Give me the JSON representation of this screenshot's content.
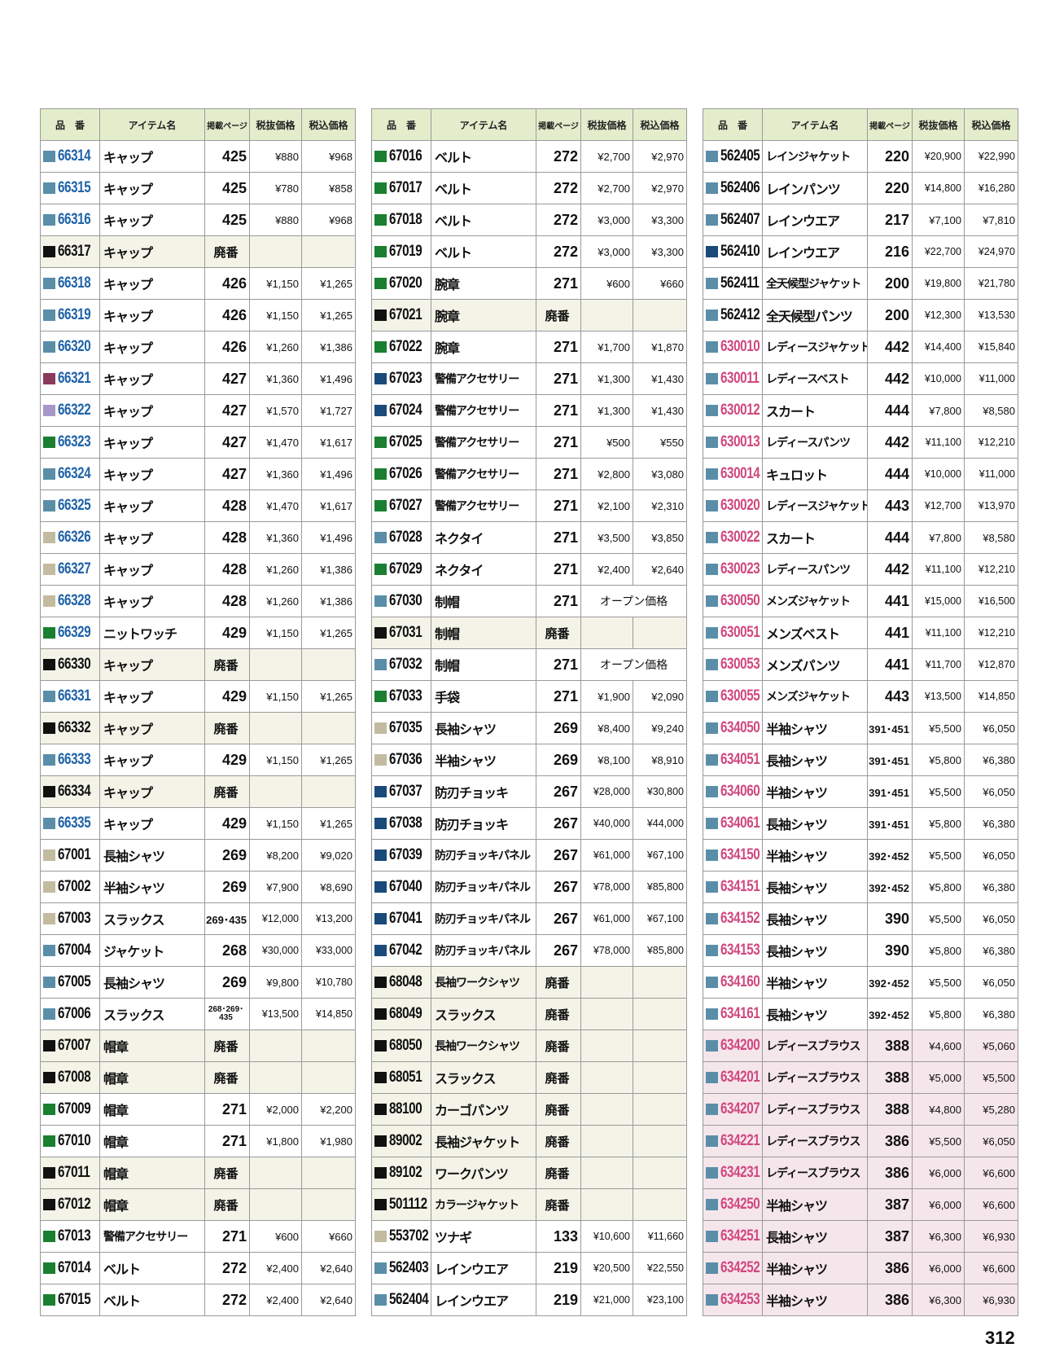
{
  "headers": [
    "品　番",
    "アイテム名",
    "掲載ページ",
    "税抜価格",
    "税込価格"
  ],
  "colors": {
    "s": "#5a8ea8",
    "k": "#111111",
    "m": "#8a3a5a",
    "l": "#a996c8",
    "g": "#1a7f30",
    "t": "#c2bba0",
    "n": "#1a4a7a",
    "blue": "#1f63a8",
    "pink": "#d0487e",
    "black": "#111111"
  },
  "discontinued_label": "廃番",
  "open_price_label": "オープン価格",
  "page_number": "312",
  "tables": [
    [
      [
        "s",
        "66314",
        "キャップ",
        "425",
        "¥880",
        "¥968",
        "blue"
      ],
      [
        "s",
        "66315",
        "キャップ",
        "425",
        "¥780",
        "¥858",
        "blue"
      ],
      [
        "s",
        "66316",
        "キャップ",
        "425",
        "¥880",
        "¥968",
        "blue"
      ],
      [
        "k",
        "66317",
        "キャップ",
        "廃番",
        "",
        "",
        "black"
      ],
      [
        "s",
        "66318",
        "キャップ",
        "426",
        "¥1,150",
        "¥1,265",
        "blue"
      ],
      [
        "s",
        "66319",
        "キャップ",
        "426",
        "¥1,150",
        "¥1,265",
        "blue"
      ],
      [
        "s",
        "66320",
        "キャップ",
        "426",
        "¥1,260",
        "¥1,386",
        "blue"
      ],
      [
        "m",
        "66321",
        "キャップ",
        "427",
        "¥1,360",
        "¥1,496",
        "blue"
      ],
      [
        "l",
        "66322",
        "キャップ",
        "427",
        "¥1,570",
        "¥1,727",
        "blue"
      ],
      [
        "g",
        "66323",
        "キャップ",
        "427",
        "¥1,470",
        "¥1,617",
        "blue"
      ],
      [
        "s",
        "66324",
        "キャップ",
        "427",
        "¥1,360",
        "¥1,496",
        "blue"
      ],
      [
        "s",
        "66325",
        "キャップ",
        "428",
        "¥1,470",
        "¥1,617",
        "blue"
      ],
      [
        "t",
        "66326",
        "キャップ",
        "428",
        "¥1,360",
        "¥1,496",
        "blue"
      ],
      [
        "t",
        "66327",
        "キャップ",
        "428",
        "¥1,260",
        "¥1,386",
        "blue"
      ],
      [
        "t",
        "66328",
        "キャップ",
        "428",
        "¥1,260",
        "¥1,386",
        "blue"
      ],
      [
        "g",
        "66329",
        "ニットワッチ",
        "429",
        "¥1,150",
        "¥1,265",
        "blue"
      ],
      [
        "k",
        "66330",
        "キャップ",
        "廃番",
        "",
        "",
        "black"
      ],
      [
        "s",
        "66331",
        "キャップ",
        "429",
        "¥1,150",
        "¥1,265",
        "blue"
      ],
      [
        "k",
        "66332",
        "キャップ",
        "廃番",
        "",
        "",
        "black"
      ],
      [
        "s",
        "66333",
        "キャップ",
        "429",
        "¥1,150",
        "¥1,265",
        "blue"
      ],
      [
        "k",
        "66334",
        "キャップ",
        "廃番",
        "",
        "",
        "black"
      ],
      [
        "s",
        "66335",
        "キャップ",
        "429",
        "¥1,150",
        "¥1,265",
        "blue"
      ],
      [
        "t",
        "67001",
        "長袖シャツ",
        "269",
        "¥8,200",
        "¥9,020",
        "black"
      ],
      [
        "t",
        "67002",
        "半袖シャツ",
        "269",
        "¥7,900",
        "¥8,690",
        "black"
      ],
      [
        "t",
        "67003",
        "スラックス",
        "269･435",
        "¥12,000",
        "¥13,200",
        "black"
      ],
      [
        "s",
        "67004",
        "ジャケット",
        "268",
        "¥30,000",
        "¥33,000",
        "black"
      ],
      [
        "s",
        "67005",
        "長袖シャツ",
        "269",
        "¥9,800",
        "¥10,780",
        "black"
      ],
      [
        "s",
        "67006",
        "スラックス",
        "268･269･435",
        "¥13,500",
        "¥14,850",
        "black"
      ],
      [
        "k",
        "67007",
        "帽章",
        "廃番",
        "",
        "",
        "black"
      ],
      [
        "k",
        "67008",
        "帽章",
        "廃番",
        "",
        "",
        "black"
      ],
      [
        "g",
        "67009",
        "帽章",
        "271",
        "¥2,000",
        "¥2,200",
        "black"
      ],
      [
        "g",
        "67010",
        "帽章",
        "271",
        "¥1,800",
        "¥1,980",
        "black"
      ],
      [
        "k",
        "67011",
        "帽章",
        "廃番",
        "",
        "",
        "black"
      ],
      [
        "k",
        "67012",
        "帽章",
        "廃番",
        "",
        "",
        "black"
      ],
      [
        "g",
        "67013",
        "警備アクセサリー",
        "271",
        "¥600",
        "¥660",
        "black"
      ],
      [
        "g",
        "67014",
        "ベルト",
        "272",
        "¥2,400",
        "¥2,640",
        "black"
      ],
      [
        "g",
        "67015",
        "ベルト",
        "272",
        "¥2,400",
        "¥2,640",
        "black"
      ]
    ],
    [
      [
        "g",
        "67016",
        "ベルト",
        "272",
        "¥2,700",
        "¥2,970",
        "black"
      ],
      [
        "g",
        "67017",
        "ベルト",
        "272",
        "¥2,700",
        "¥2,970",
        "black"
      ],
      [
        "g",
        "67018",
        "ベルト",
        "272",
        "¥3,000",
        "¥3,300",
        "black"
      ],
      [
        "g",
        "67019",
        "ベルト",
        "272",
        "¥3,000",
        "¥3,300",
        "black"
      ],
      [
        "g",
        "67020",
        "腕章",
        "271",
        "¥600",
        "¥660",
        "black"
      ],
      [
        "k",
        "67021",
        "腕章",
        "廃番",
        "",
        "",
        "black"
      ],
      [
        "g",
        "67022",
        "腕章",
        "271",
        "¥1,700",
        "¥1,870",
        "black"
      ],
      [
        "n",
        "67023",
        "警備アクセサリー",
        "271",
        "¥1,300",
        "¥1,430",
        "black"
      ],
      [
        "n",
        "67024",
        "警備アクセサリー",
        "271",
        "¥1,300",
        "¥1,430",
        "black"
      ],
      [
        "g",
        "67025",
        "警備アクセサリー",
        "271",
        "¥500",
        "¥550",
        "black"
      ],
      [
        "g",
        "67026",
        "警備アクセサリー",
        "271",
        "¥2,800",
        "¥3,080",
        "black"
      ],
      [
        "g",
        "67027",
        "警備アクセサリー",
        "271",
        "¥2,100",
        "¥2,310",
        "black"
      ],
      [
        "s",
        "67028",
        "ネクタイ",
        "271",
        "¥3,500",
        "¥3,850",
        "black"
      ],
      [
        "g",
        "67029",
        "ネクタイ",
        "271",
        "¥2,400",
        "¥2,640",
        "black"
      ],
      [
        "s",
        "67030",
        "制帽",
        "271",
        "オープン価格",
        "",
        "black"
      ],
      [
        "k",
        "67031",
        "制帽",
        "廃番",
        "",
        "",
        "black"
      ],
      [
        "s",
        "67032",
        "制帽",
        "271",
        "オープン価格",
        "",
        "black"
      ],
      [
        "g",
        "67033",
        "手袋",
        "271",
        "¥1,900",
        "¥2,090",
        "black"
      ],
      [
        "t",
        "67035",
        "長袖シャツ",
        "269",
        "¥8,400",
        "¥9,240",
        "black"
      ],
      [
        "t",
        "67036",
        "半袖シャツ",
        "269",
        "¥8,100",
        "¥8,910",
        "black"
      ],
      [
        "n",
        "67037",
        "防刃チョッキ",
        "267",
        "¥28,000",
        "¥30,800",
        "black"
      ],
      [
        "n",
        "67038",
        "防刃チョッキ",
        "267",
        "¥40,000",
        "¥44,000",
        "black"
      ],
      [
        "n",
        "67039",
        "防刃チョッキパネル",
        "267",
        "¥61,000",
        "¥67,100",
        "black"
      ],
      [
        "n",
        "67040",
        "防刃チョッキパネル",
        "267",
        "¥78,000",
        "¥85,800",
        "black"
      ],
      [
        "n",
        "67041",
        "防刃チョッキパネル",
        "267",
        "¥61,000",
        "¥67,100",
        "black"
      ],
      [
        "n",
        "67042",
        "防刃チョッキパネル",
        "267",
        "¥78,000",
        "¥85,800",
        "black"
      ],
      [
        "k",
        "68048",
        "長袖ワークシャツ",
        "廃番",
        "",
        "",
        "black"
      ],
      [
        "k",
        "68049",
        "スラックス",
        "廃番",
        "",
        "",
        "black"
      ],
      [
        "k",
        "68050",
        "長袖ワークシャツ",
        "廃番",
        "",
        "",
        "black"
      ],
      [
        "k",
        "68051",
        "スラックス",
        "廃番",
        "",
        "",
        "black"
      ],
      [
        "k",
        "88100",
        "カーゴパンツ",
        "廃番",
        "",
        "",
        "black"
      ],
      [
        "k",
        "89002",
        "長袖ジャケット",
        "廃番",
        "",
        "",
        "black"
      ],
      [
        "k",
        "89102",
        "ワークパンツ",
        "廃番",
        "",
        "",
        "black"
      ],
      [
        "k",
        "501112",
        "カラージャケット",
        "廃番",
        "",
        "",
        "black"
      ],
      [
        "t",
        "553702",
        "ツナギ",
        "133",
        "¥10,600",
        "¥11,660",
        "black"
      ],
      [
        "s",
        "562403",
        "レインウエア",
        "219",
        "¥20,500",
        "¥22,550",
        "black"
      ],
      [
        "s",
        "562404",
        "レインウエア",
        "219",
        "¥21,000",
        "¥23,100",
        "black"
      ]
    ],
    [
      [
        "s",
        "562405",
        "レインジャケット",
        "220",
        "¥20,900",
        "¥22,990",
        "black"
      ],
      [
        "s",
        "562406",
        "レインパンツ",
        "220",
        "¥14,800",
        "¥16,280",
        "black"
      ],
      [
        "s",
        "562407",
        "レインウエア",
        "217",
        "¥7,100",
        "¥7,810",
        "black"
      ],
      [
        "n",
        "562410",
        "レインウエア",
        "216",
        "¥22,700",
        "¥24,970",
        "black"
      ],
      [
        "s",
        "562411",
        "全天候型ジャケット",
        "200",
        "¥19,800",
        "¥21,780",
        "black"
      ],
      [
        "s",
        "562412",
        "全天候型パンツ",
        "200",
        "¥12,300",
        "¥13,530",
        "black"
      ],
      [
        "s",
        "630010",
        "レディースジャケット",
        "442",
        "¥14,400",
        "¥15,840",
        "pink"
      ],
      [
        "s",
        "630011",
        "レディースベスト",
        "442",
        "¥10,000",
        "¥11,000",
        "pink"
      ],
      [
        "s",
        "630012",
        "スカート",
        "444",
        "¥7,800",
        "¥8,580",
        "pink"
      ],
      [
        "s",
        "630013",
        "レディースパンツ",
        "442",
        "¥11,100",
        "¥12,210",
        "pink"
      ],
      [
        "s",
        "630014",
        "キュロット",
        "444",
        "¥10,000",
        "¥11,000",
        "pink"
      ],
      [
        "s",
        "630020",
        "レディースジャケット",
        "443",
        "¥12,700",
        "¥13,970",
        "pink"
      ],
      [
        "s",
        "630022",
        "スカート",
        "444",
        "¥7,800",
        "¥8,580",
        "pink"
      ],
      [
        "s",
        "630023",
        "レディースパンツ",
        "442",
        "¥11,100",
        "¥12,210",
        "pink"
      ],
      [
        "s",
        "630050",
        "メンズジャケット",
        "441",
        "¥15,000",
        "¥16,500",
        "pink"
      ],
      [
        "s",
        "630051",
        "メンズベスト",
        "441",
        "¥11,100",
        "¥12,210",
        "pink"
      ],
      [
        "s",
        "630053",
        "メンズパンツ",
        "441",
        "¥11,700",
        "¥12,870",
        "pink"
      ],
      [
        "s",
        "630055",
        "メンズジャケット",
        "443",
        "¥13,500",
        "¥14,850",
        "pink"
      ],
      [
        "s",
        "634050",
        "半袖シャツ",
        "391･451",
        "¥5,500",
        "¥6,050",
        "pink"
      ],
      [
        "s",
        "634051",
        "長袖シャツ",
        "391･451",
        "¥5,800",
        "¥6,380",
        "pink"
      ],
      [
        "s",
        "634060",
        "半袖シャツ",
        "391･451",
        "¥5,500",
        "¥6,050",
        "pink"
      ],
      [
        "s",
        "634061",
        "長袖シャツ",
        "391･451",
        "¥5,800",
        "¥6,380",
        "pink"
      ],
      [
        "s",
        "634150",
        "半袖シャツ",
        "392･452",
        "¥5,500",
        "¥6,050",
        "pink"
      ],
      [
        "s",
        "634151",
        "長袖シャツ",
        "392･452",
        "¥5,800",
        "¥6,380",
        "pink"
      ],
      [
        "s",
        "634152",
        "長袖シャツ",
        "390",
        "¥5,500",
        "¥6,050",
        "pink"
      ],
      [
        "s",
        "634153",
        "長袖シャツ",
        "390",
        "¥5,800",
        "¥6,380",
        "pink"
      ],
      [
        "s",
        "634160",
        "半袖シャツ",
        "392･452",
        "¥5,500",
        "¥6,050",
        "pink"
      ],
      [
        "s",
        "634161",
        "長袖シャツ",
        "392･452",
        "¥5,800",
        "¥6,380",
        "pink"
      ],
      [
        "s",
        "634200",
        "レディースブラウス",
        "388",
        "¥4,600",
        "¥5,060",
        "pink",
        "pinkrow"
      ],
      [
        "s",
        "634201",
        "レディースブラウス",
        "388",
        "¥5,000",
        "¥5,500",
        "pink",
        "pinkrow"
      ],
      [
        "s",
        "634207",
        "レディースブラウス",
        "388",
        "¥4,800",
        "¥5,280",
        "pink",
        "pinkrow"
      ],
      [
        "s",
        "634221",
        "レディースブラウス",
        "386",
        "¥5,500",
        "¥6,050",
        "pink",
        "pinkrow"
      ],
      [
        "s",
        "634231",
        "レディースブラウス",
        "386",
        "¥6,000",
        "¥6,600",
        "pink",
        "pinkrow"
      ],
      [
        "s",
        "634250",
        "半袖シャツ",
        "387",
        "¥6,000",
        "¥6,600",
        "pink",
        "pinkrow"
      ],
      [
        "s",
        "634251",
        "長袖シャツ",
        "387",
        "¥6,300",
        "¥6,930",
        "pink",
        "pinkrow"
      ],
      [
        "s",
        "634252",
        "半袖シャツ",
        "386",
        "¥6,000",
        "¥6,600",
        "pink",
        "pinkrow"
      ],
      [
        "s",
        "634253",
        "半袖シャツ",
        "386",
        "¥6,300",
        "¥6,930",
        "pink",
        "pinkrow"
      ]
    ]
  ]
}
